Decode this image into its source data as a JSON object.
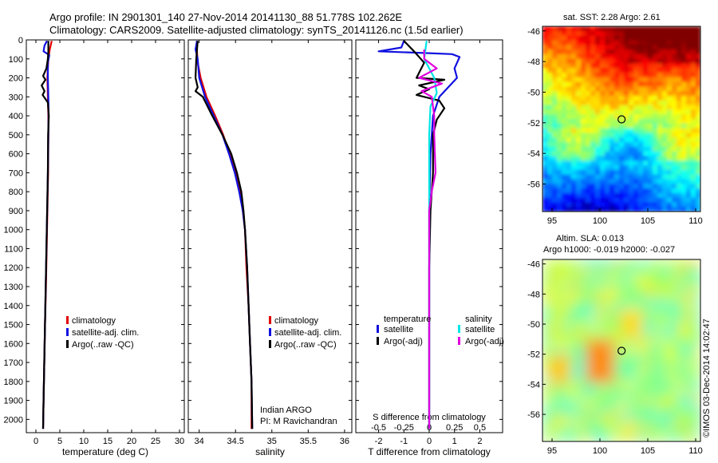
{
  "header": {
    "line1": "Argo profile: IN 2901301_140 27-Nov-2014 20141130_88 51.778S 102.262E",
    "line2": "Climatology: CARS2009. Satellite-adjusted climatology: synTS_20141126.nc (1.5d earlier)"
  },
  "colors": {
    "climatology": "#e00000",
    "satellite": "#1010e0",
    "argo": "#000000",
    "sat_salinity": "#00e5e5",
    "argo_adj_salinity": "#e000e0"
  },
  "legends": {
    "temp": [
      "climatology",
      "satellite-adj. clim.",
      "Argo(..raw -QC)"
    ],
    "sal": [
      "climatology",
      "satellite-adj. clim.",
      "Argo(..raw -QC)"
    ],
    "diff": {
      "temperature_title": "temperature",
      "salinity_title": "salinity",
      "t_sat": "satellite",
      "t_argo": "Argo(-adj)",
      "s_sat": "satellite",
      "s_argo": "Argo(-adj)"
    }
  },
  "annotations": {
    "program": "Indian ARGO",
    "pi": "PI: M Ravichandran",
    "sst_title": "sat. SST: 2.28 Argo: 2.61",
    "sla_title1": "Altim. SLA: 0.013",
    "sla_title2": "Argo h1000: -0.019 h2000: -0.027",
    "credit": "©IMOS 03-Dec-2014 14:02:47"
  },
  "chart_data": [
    {
      "type": "line",
      "xlabel": "temperature (deg C)",
      "ylabel": "",
      "xlim": [
        -2,
        31
      ],
      "ylim": [
        2070,
        0
      ],
      "xticks": [
        0,
        5,
        10,
        15,
        20,
        25,
        30
      ],
      "yticks": [
        0,
        100,
        200,
        300,
        400,
        500,
        600,
        700,
        800,
        900,
        1000,
        1100,
        1200,
        1300,
        1400,
        1500,
        1600,
        1700,
        1800,
        1900,
        2000
      ],
      "series": [
        {
          "name": "climatology",
          "color": "#e00000",
          "points": [
            [
              3.3,
              5
            ],
            [
              2.9,
              50
            ],
            [
              2.6,
              100
            ],
            [
              2.5,
              150
            ],
            [
              2.4,
              200
            ],
            [
              2.5,
              300
            ],
            [
              2.6,
              400
            ],
            [
              2.6,
              500
            ],
            [
              2.55,
              700
            ],
            [
              2.4,
              900
            ],
            [
              2.25,
              1100
            ],
            [
              2.1,
              1300
            ],
            [
              1.9,
              1500
            ],
            [
              1.75,
              1700
            ],
            [
              1.6,
              1900
            ],
            [
              1.5,
              2050
            ]
          ]
        },
        {
          "name": "satellite-adj. clim.",
          "color": "#1010e0",
          "points": [
            [
              2.3,
              5
            ],
            [
              1.8,
              30
            ],
            [
              1.6,
              60
            ],
            [
              2.8,
              80
            ],
            [
              2.5,
              120
            ],
            [
              2.5,
              200
            ],
            [
              2.6,
              300
            ],
            [
              2.65,
              400
            ],
            [
              2.6,
              500
            ],
            [
              2.5,
              700
            ],
            [
              2.35,
              900
            ],
            [
              2.2,
              1100
            ],
            [
              2.05,
              1300
            ],
            [
              1.9,
              1500
            ],
            [
              1.75,
              1700
            ],
            [
              1.6,
              1900
            ],
            [
              1.5,
              2050
            ]
          ]
        },
        {
          "name": "Argo(..raw -QC)",
          "color": "#000000",
          "points": [
            [
              2.6,
              5
            ],
            [
              2.6,
              60
            ],
            [
              2.5,
              100
            ],
            [
              2.2,
              150
            ],
            [
              1.5,
              190
            ],
            [
              2.0,
              210
            ],
            [
              1.2,
              240
            ],
            [
              1.8,
              270
            ],
            [
              1.4,
              290
            ],
            [
              2.5,
              330
            ],
            [
              2.7,
              400
            ],
            [
              2.55,
              500
            ],
            [
              2.5,
              700
            ],
            [
              2.35,
              900
            ],
            [
              2.2,
              1100
            ],
            [
              2.05,
              1300
            ],
            [
              1.9,
              1500
            ],
            [
              1.75,
              1700
            ],
            [
              1.6,
              1900
            ],
            [
              1.5,
              2050
            ]
          ]
        }
      ]
    },
    {
      "type": "line",
      "xlabel": "salinity",
      "ylabel": "",
      "xlim": [
        33.85,
        36.1
      ],
      "ylim": [
        2070,
        0
      ],
      "xticks": [
        34,
        34.5,
        35,
        35.5,
        36
      ],
      "xticklabels": [
        "34",
        "34.5",
        "35",
        "35.5",
        "36"
      ],
      "series": [
        {
          "name": "climatology",
          "color": "#e00000",
          "points": [
            [
              33.97,
              5
            ],
            [
              33.97,
              60
            ],
            [
              33.98,
              120
            ],
            [
              34.02,
              200
            ],
            [
              34.1,
              300
            ],
            [
              34.22,
              400
            ],
            [
              34.33,
              500
            ],
            [
              34.42,
              600
            ],
            [
              34.5,
              700
            ],
            [
              34.56,
              800
            ],
            [
              34.6,
              900
            ],
            [
              34.63,
              1000
            ],
            [
              34.65,
              1200
            ],
            [
              34.68,
              1400
            ],
            [
              34.7,
              1600
            ],
            [
              34.72,
              1800
            ],
            [
              34.72,
              2050
            ]
          ]
        },
        {
          "name": "satellite-adj. clim.",
          "color": "#1010e0",
          "points": [
            [
              33.97,
              5
            ],
            [
              33.95,
              50
            ],
            [
              33.98,
              100
            ],
            [
              34.0,
              200
            ],
            [
              34.08,
              300
            ],
            [
              34.2,
              400
            ],
            [
              34.32,
              500
            ],
            [
              34.41,
              600
            ],
            [
              34.49,
              700
            ],
            [
              34.55,
              800
            ],
            [
              34.6,
              900
            ],
            [
              34.63,
              1000
            ],
            [
              34.66,
              1200
            ],
            [
              34.68,
              1400
            ],
            [
              34.7,
              1600
            ],
            [
              34.72,
              1800
            ],
            [
              34.73,
              2050
            ]
          ]
        },
        {
          "name": "Argo(..raw -QC)",
          "color": "#000000",
          "points": [
            [
              33.98,
              5
            ],
            [
              33.96,
              100
            ],
            [
              33.95,
              200
            ],
            [
              33.98,
              250
            ],
            [
              33.95,
              270
            ],
            [
              34.05,
              300
            ],
            [
              34.18,
              400
            ],
            [
              34.32,
              500
            ],
            [
              34.44,
              600
            ],
            [
              34.52,
              700
            ],
            [
              34.58,
              800
            ],
            [
              34.61,
              900
            ],
            [
              34.63,
              1000
            ],
            [
              34.66,
              1200
            ],
            [
              34.68,
              1400
            ],
            [
              34.7,
              1600
            ],
            [
              34.72,
              1800
            ],
            [
              34.73,
              2050
            ]
          ]
        }
      ]
    },
    {
      "type": "line",
      "xlabel": "T difference from climatology",
      "ylabel": "",
      "top_label": "S difference from climatology",
      "xlim": [
        -2.9,
        2.9
      ],
      "ylim": [
        2070,
        0
      ],
      "xticks": [
        -2,
        -1,
        0,
        1,
        2
      ],
      "top_xticklabels": [
        "-0.5",
        "-0.25",
        "0",
        "0.25",
        "0.5"
      ],
      "series": [
        {
          "name": "temperature satellite",
          "color": "#1010e0",
          "points": [
            [
              -1.0,
              5
            ],
            [
              -1.1,
              40
            ],
            [
              -2.0,
              60
            ],
            [
              0.0,
              70
            ],
            [
              0.9,
              75
            ],
            [
              1.2,
              90
            ],
            [
              1.0,
              150
            ],
            [
              1.1,
              200
            ],
            [
              0.4,
              300
            ],
            [
              0.15,
              400
            ],
            [
              0.05,
              600
            ],
            [
              0.0,
              900
            ],
            [
              0.0,
              1200
            ],
            [
              0.0,
              1500
            ],
            [
              0.0,
              1800
            ],
            [
              0.0,
              2050
            ]
          ]
        },
        {
          "name": "temperature Argo(-adj)",
          "color": "#000000",
          "points": [
            [
              -1.0,
              5
            ],
            [
              -0.6,
              60
            ],
            [
              -0.2,
              120
            ],
            [
              -0.5,
              200
            ],
            [
              0.6,
              210
            ],
            [
              -0.4,
              240
            ],
            [
              0.0,
              260
            ],
            [
              -0.5,
              290
            ],
            [
              0.4,
              320
            ],
            [
              0.6,
              360
            ],
            [
              0.3,
              420
            ],
            [
              0.15,
              500
            ],
            [
              0.15,
              700
            ],
            [
              0.05,
              900
            ],
            [
              0.0,
              1200
            ],
            [
              0.0,
              1500
            ],
            [
              0.0,
              1800
            ],
            [
              0.0,
              2050
            ]
          ]
        },
        {
          "name": "salinity satellite",
          "color": "#00e5e5",
          "points": [
            [
              -0.1,
              5
            ],
            [
              -0.2,
              100
            ],
            [
              0.2,
              200
            ],
            [
              0.3,
              280
            ],
            [
              0.05,
              350
            ],
            [
              0.0,
              500
            ],
            [
              0.0,
              700
            ],
            [
              0.0,
              900
            ],
            [
              0.0,
              1200
            ],
            [
              0.0,
              1500
            ],
            [
              0.0,
              1800
            ],
            [
              0.0,
              2050
            ]
          ]
        },
        {
          "name": "salinity Argo(-adj)",
          "color": "#e000e0",
          "points": [
            [
              -0.2,
              50
            ],
            [
              -0.2,
              100
            ],
            [
              0.3,
              150
            ],
            [
              -0.4,
              200
            ],
            [
              0.5,
              230
            ],
            [
              -0.3,
              270
            ],
            [
              0.1,
              300
            ],
            [
              0.2,
              400
            ],
            [
              0.2,
              500
            ],
            [
              0.25,
              700
            ],
            [
              0.1,
              800
            ],
            [
              0.0,
              900
            ],
            [
              0.0,
              1200
            ],
            [
              0.0,
              1500
            ],
            [
              0.0,
              1800
            ],
            [
              0.0,
              2050
            ]
          ]
        }
      ]
    },
    {
      "type": "heatmap",
      "title": "sat. SST: 2.28 Argo: 2.61",
      "xlim": [
        94,
        110.5
      ],
      "ylim": [
        -57.8,
        -45.7
      ],
      "xticks": [
        95,
        100,
        105,
        110
      ],
      "yticks": [
        -46,
        -48,
        -50,
        -52,
        -54,
        -56
      ],
      "marker": {
        "x": 102.262,
        "y": -51.778
      }
    },
    {
      "type": "heatmap",
      "title": "Altim. SLA: 0.013",
      "xlim": [
        94,
        110.5
      ],
      "ylim": [
        -57.8,
        -45.7
      ],
      "xticks": [
        95,
        100,
        105,
        110
      ],
      "yticks": [
        -46,
        -48,
        -50,
        -52,
        -54,
        -56
      ],
      "marker": {
        "x": 102.262,
        "y": -51.778
      }
    }
  ]
}
